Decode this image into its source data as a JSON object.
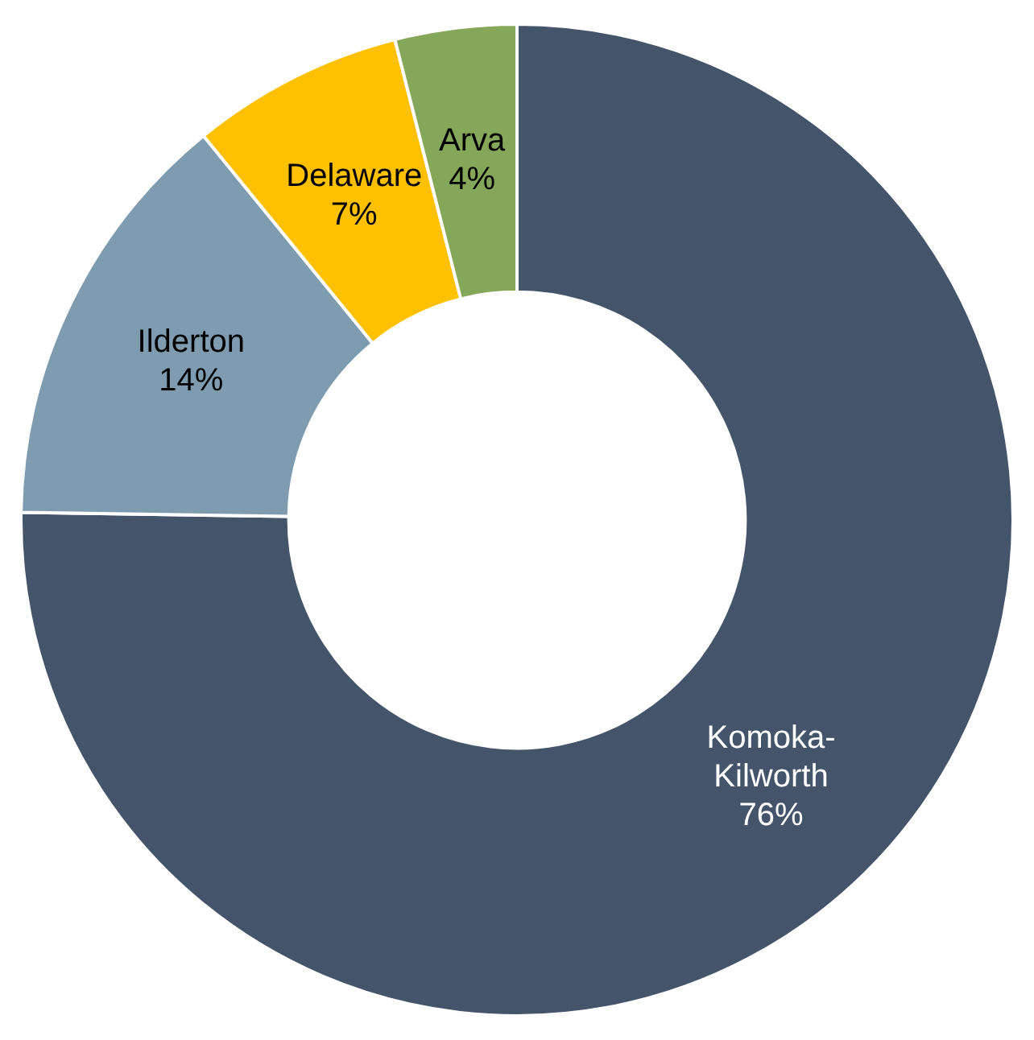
{
  "chart_data": {
    "type": "donut",
    "categories": [
      "Komoka-Kilworth",
      "Ilderton",
      "Delaware",
      "Arva"
    ],
    "values": [
      76,
      14,
      7,
      4
    ],
    "value_labels": [
      "76%",
      "14%",
      "7%",
      "4%"
    ],
    "colors": [
      "#44546a",
      "#7f9bb0",
      "#ffc000",
      "#84a75a"
    ],
    "legend": false
  }
}
